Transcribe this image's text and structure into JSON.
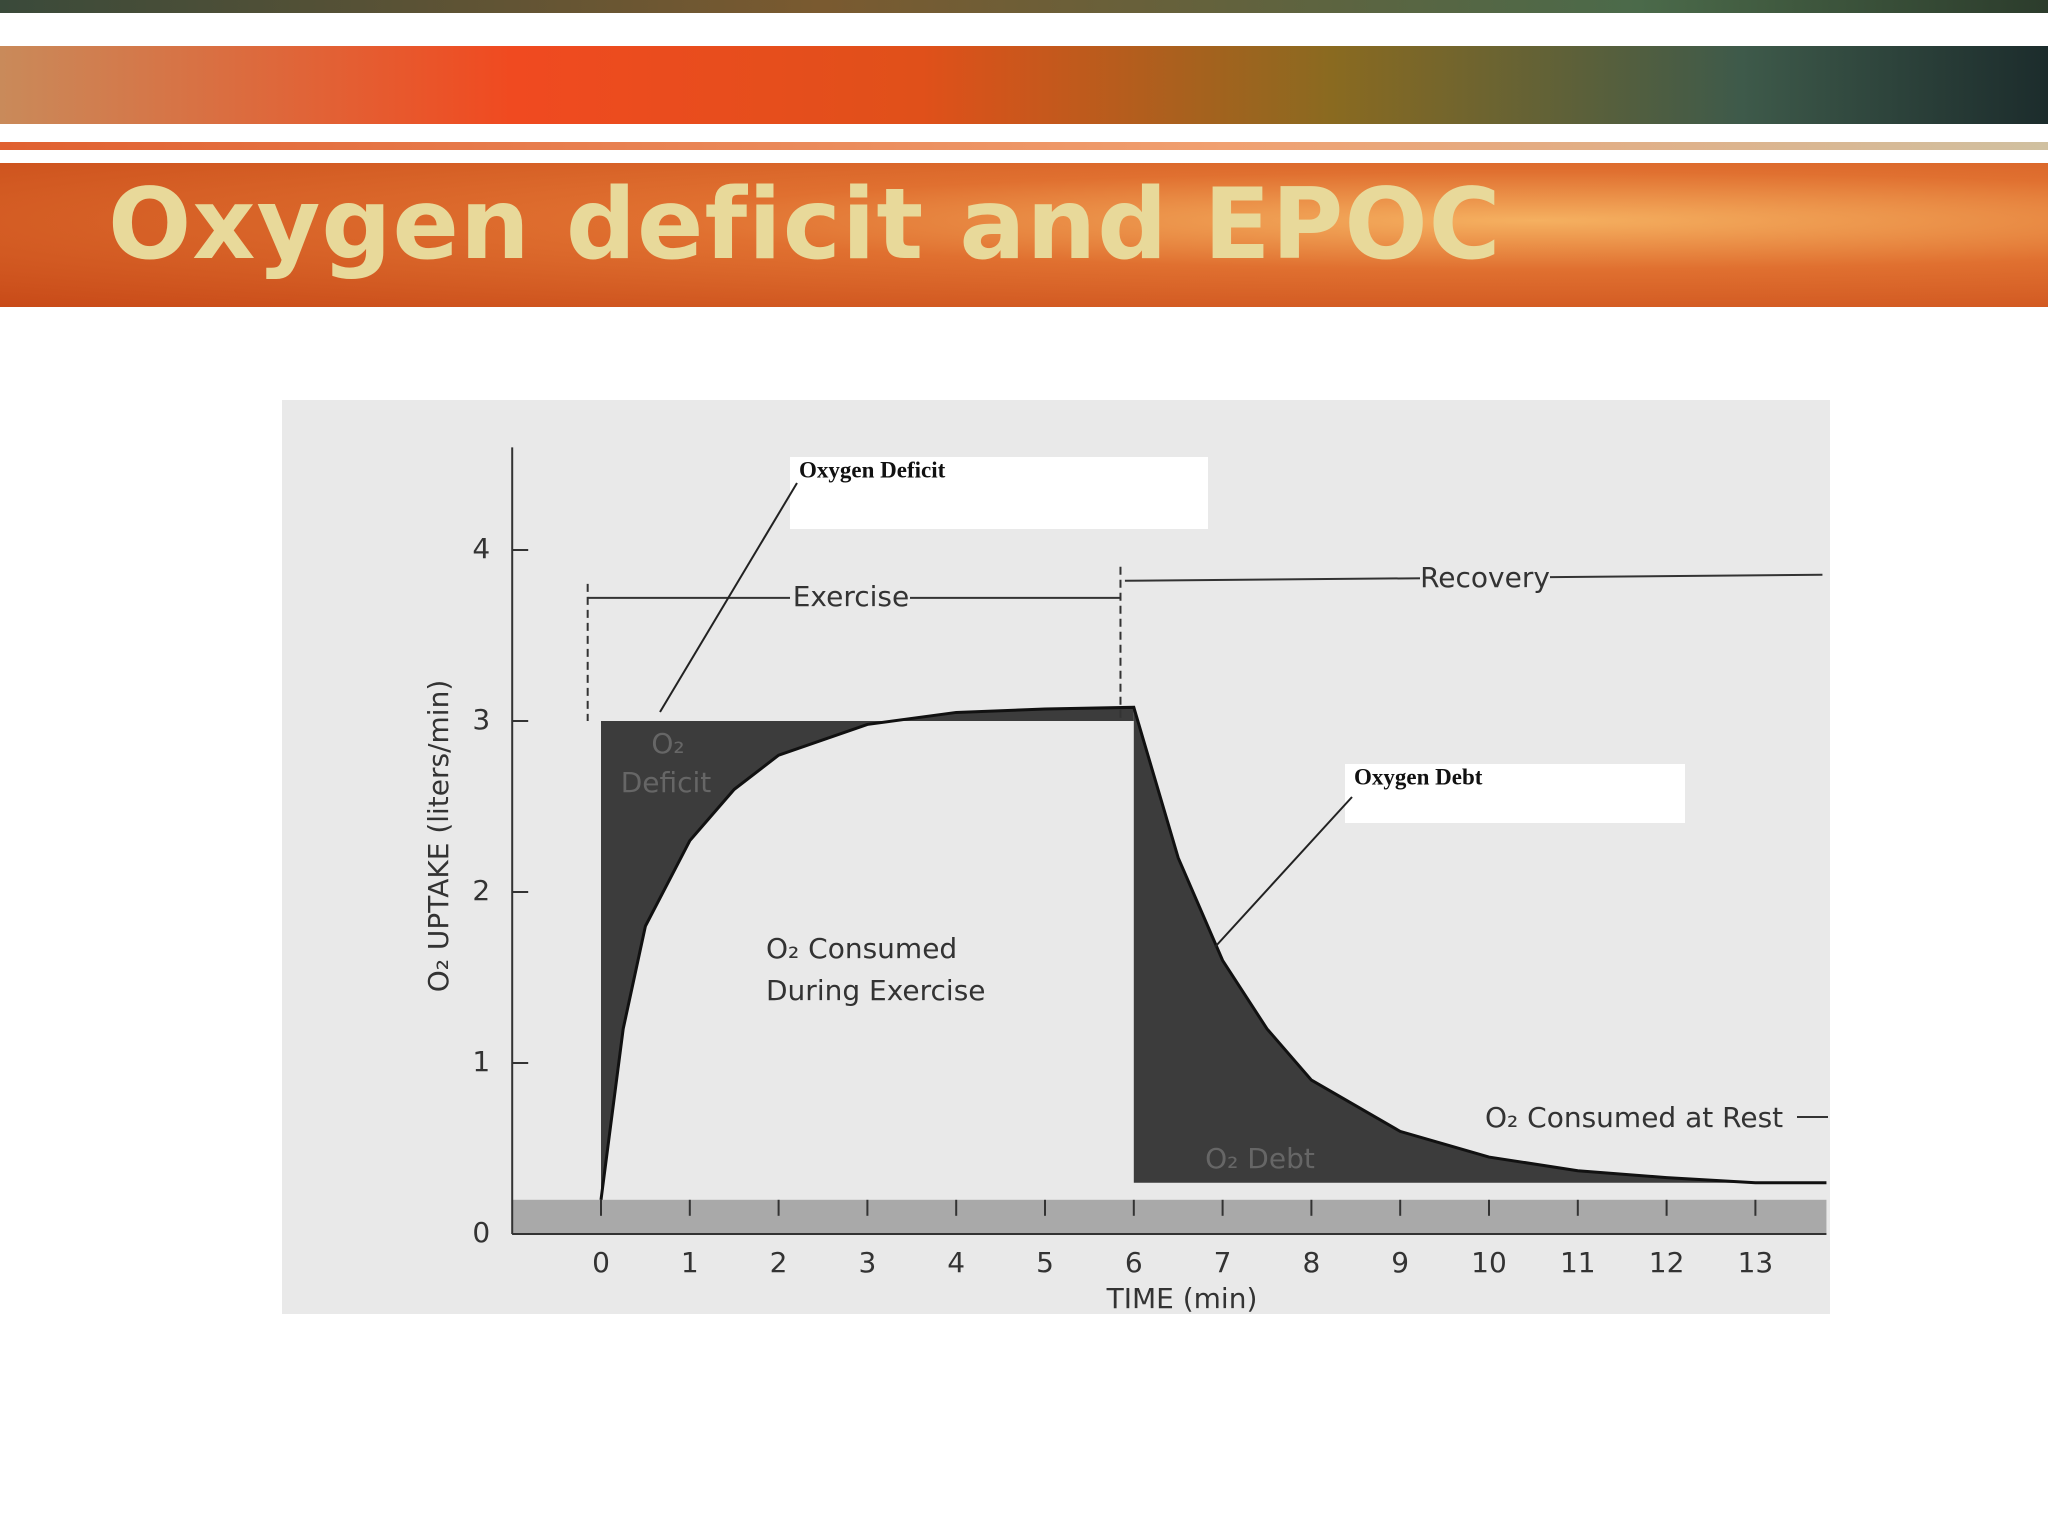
{
  "slide_title": "Oxygen deficit and EPOC",
  "chart_data": {
    "type": "line",
    "x_label": "TIME (min)",
    "y_label": "O₂ UPTAKE (liters/min)",
    "x": [
      0,
      0.25,
      0.5,
      1,
      1.5,
      2,
      3,
      4,
      5,
      6,
      6.5,
      7,
      7.5,
      8,
      9,
      10,
      11,
      12,
      13,
      13.8
    ],
    "series": [
      {
        "color": "#111111",
        "values": [
          0.2,
          1.2,
          1.8,
          2.3,
          2.6,
          2.8,
          2.98,
          3.05,
          3.07,
          3.08,
          2.2,
          1.6,
          1.2,
          0.9,
          0.6,
          0.45,
          0.37,
          0.33,
          0.3,
          0.3
        ]
      }
    ],
    "exercise_level": 3.0,
    "rest_level": 0.3,
    "area_color": "#3c3c3c",
    "xlim": [
      -1,
      13.8
    ],
    "ylim": [
      0,
      4.6
    ],
    "xticks": [
      0,
      1,
      2,
      3,
      4,
      5,
      6,
      7,
      8,
      9,
      10,
      11,
      12,
      13
    ],
    "yticks": [
      0,
      1,
      2,
      3,
      4
    ],
    "annotations": {
      "deficit_callout": "Oxygen Deficit",
      "debt_callout": "Oxygen Debt",
      "exercise": "Exercise",
      "recovery": "Recovery",
      "deficit_area": [
        "O₂",
        "Deficit"
      ],
      "consumed_exercise": [
        "O₂ Consumed",
        "During Exercise"
      ],
      "debt_area": "O₂ Debt",
      "consumed_rest": "O₂ Consumed at Rest"
    }
  }
}
